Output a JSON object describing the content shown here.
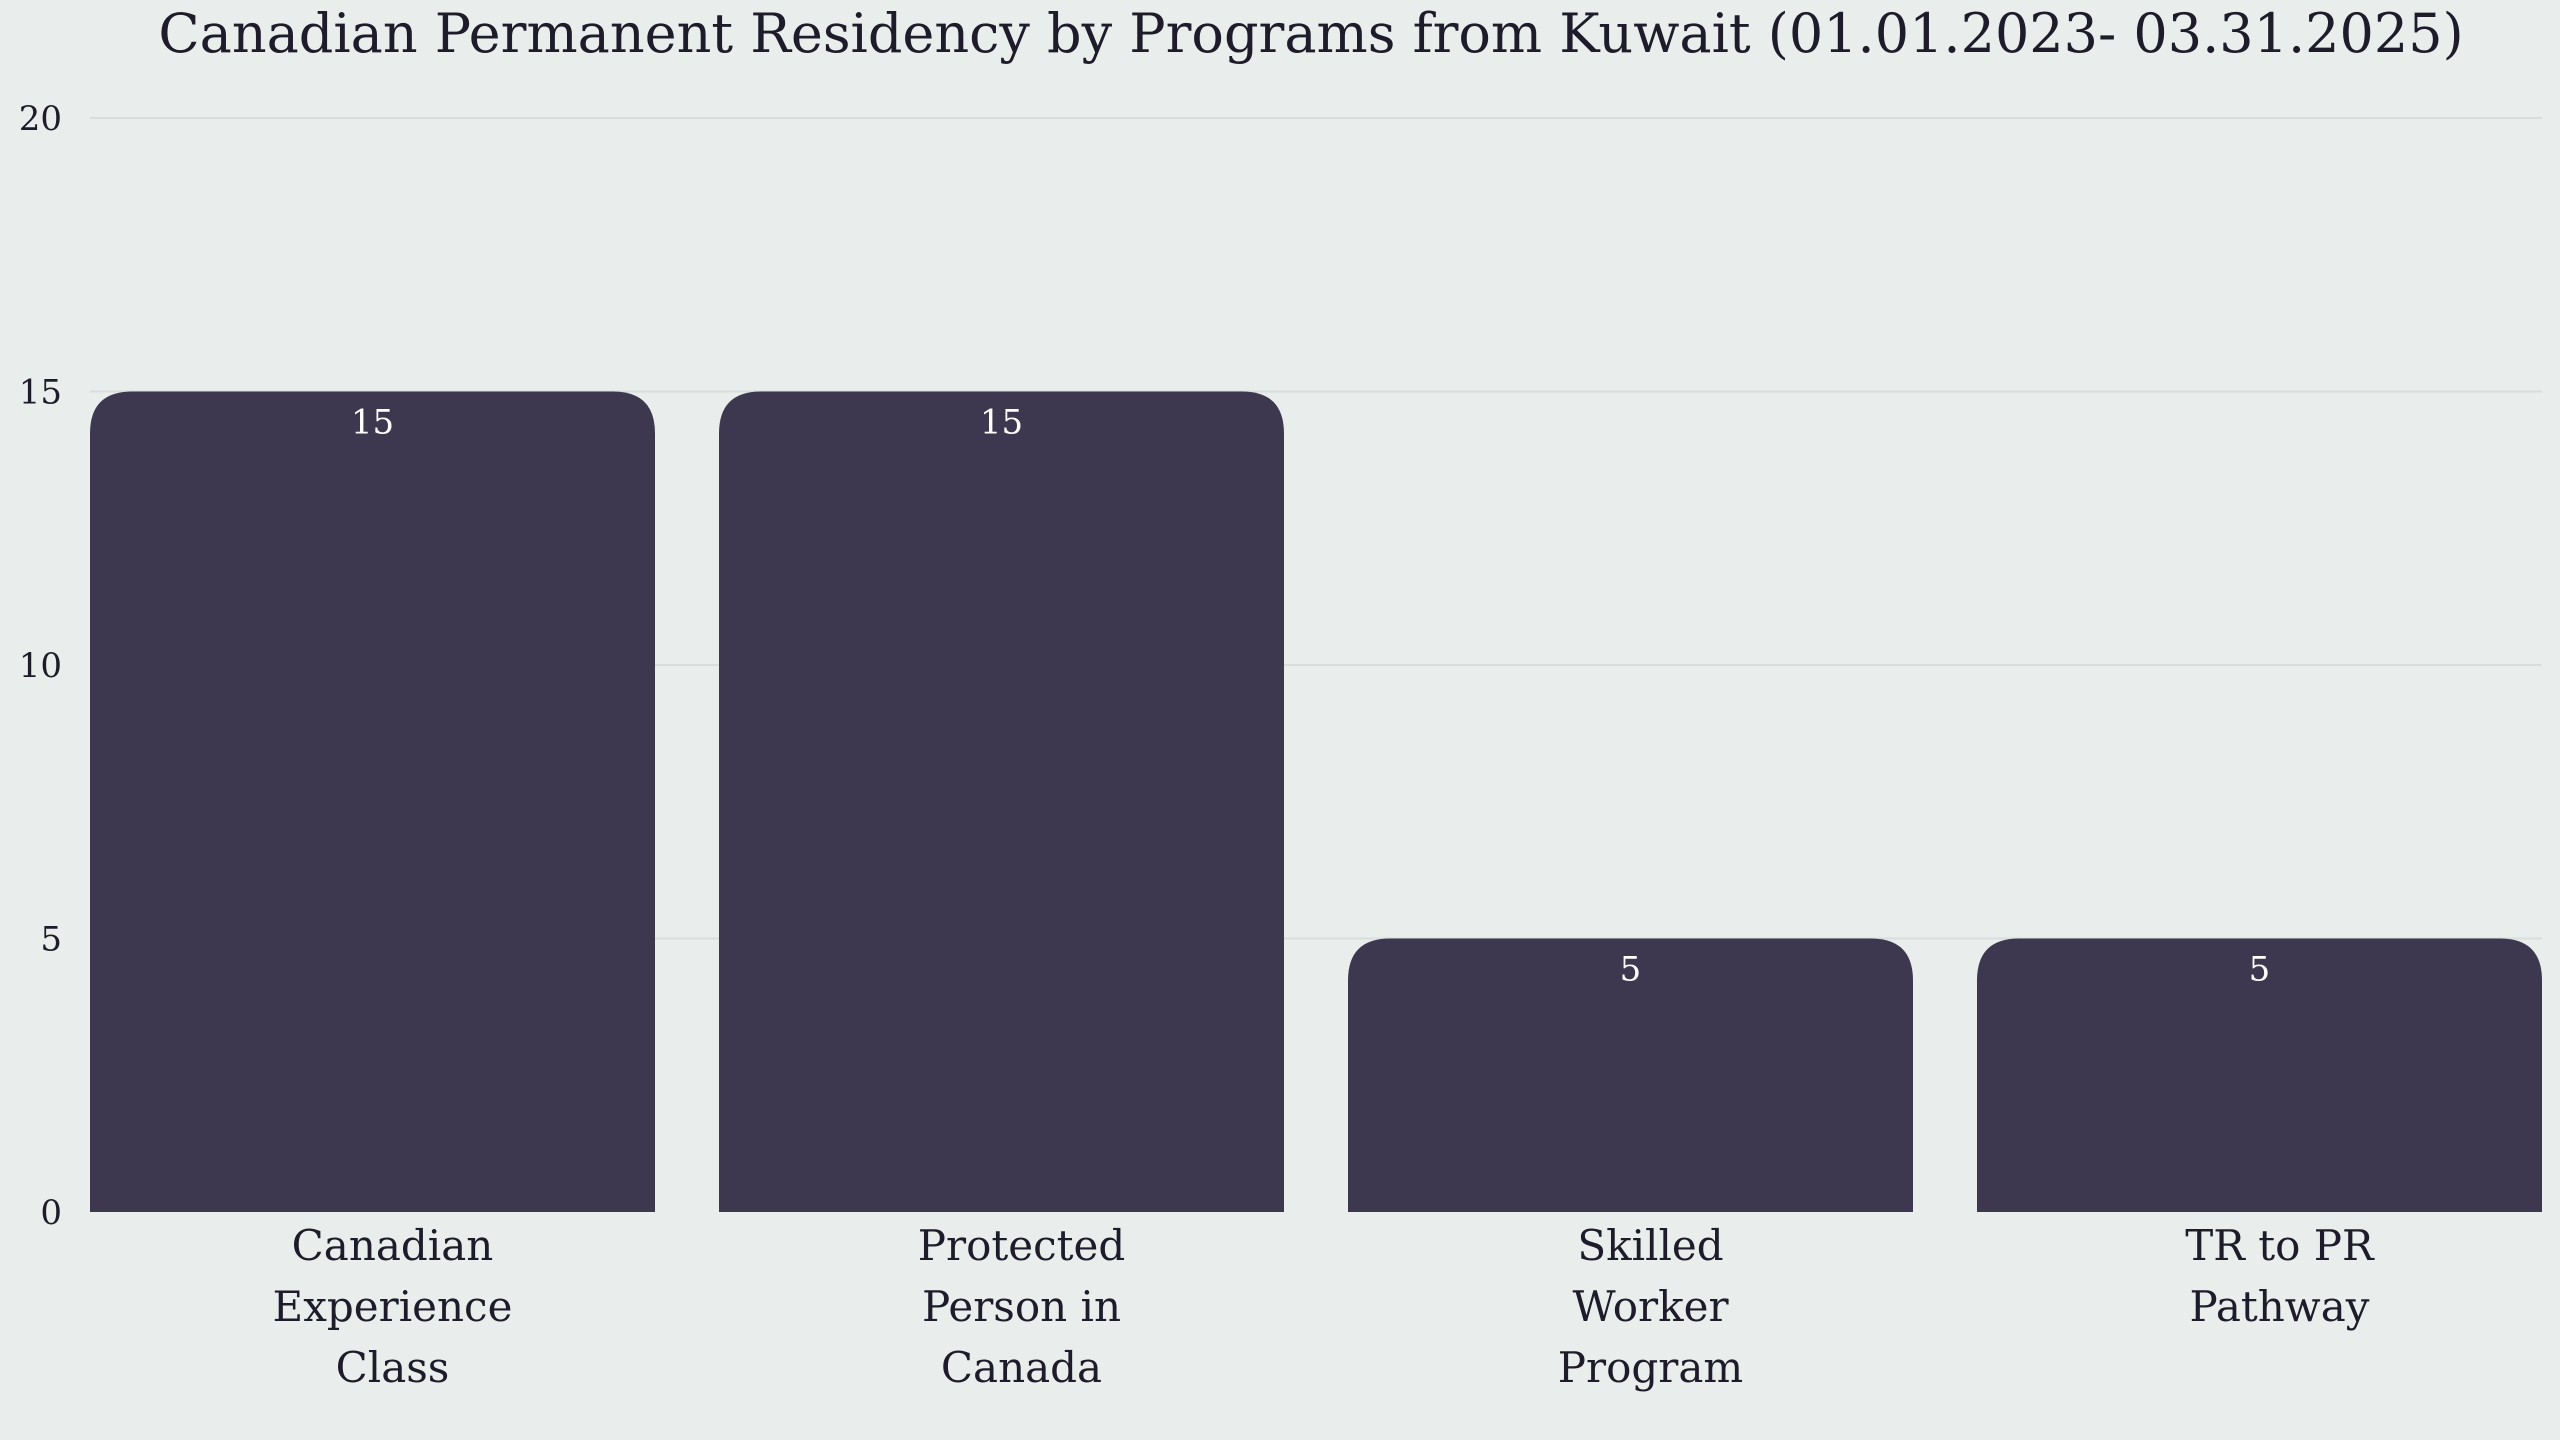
{
  "chart_data": {
    "type": "bar",
    "title": "Canadian Permanent Residency by Programs from Kuwait (01.01.2023- 03.31.2025)",
    "categories": [
      "Canadian Experience Class",
      "Protected Person in Canada",
      "Skilled Worker Program",
      "TR to PR Pathway"
    ],
    "category_lines": [
      [
        "Canadian",
        "Experience",
        "Class"
      ],
      [
        "Protected",
        "Person in",
        "Canada"
      ],
      [
        "Skilled",
        "Worker",
        "Program"
      ],
      [
        "TR to PR",
        "Pathway"
      ]
    ],
    "values": [
      15,
      15,
      5,
      5
    ],
    "data_labels": [
      "15",
      "15",
      "5",
      "5"
    ],
    "xlabel": "",
    "ylabel": "",
    "ylim": [
      0,
      20
    ],
    "yticks": [
      0,
      5,
      10,
      15,
      20
    ],
    "grid": true,
    "legend": "none",
    "colors": {
      "bar": "#3d384f",
      "background": "#e9eeec",
      "grid": "#d9dedd",
      "text": "#1e1c2a",
      "data_label": "#ffffff"
    }
  }
}
